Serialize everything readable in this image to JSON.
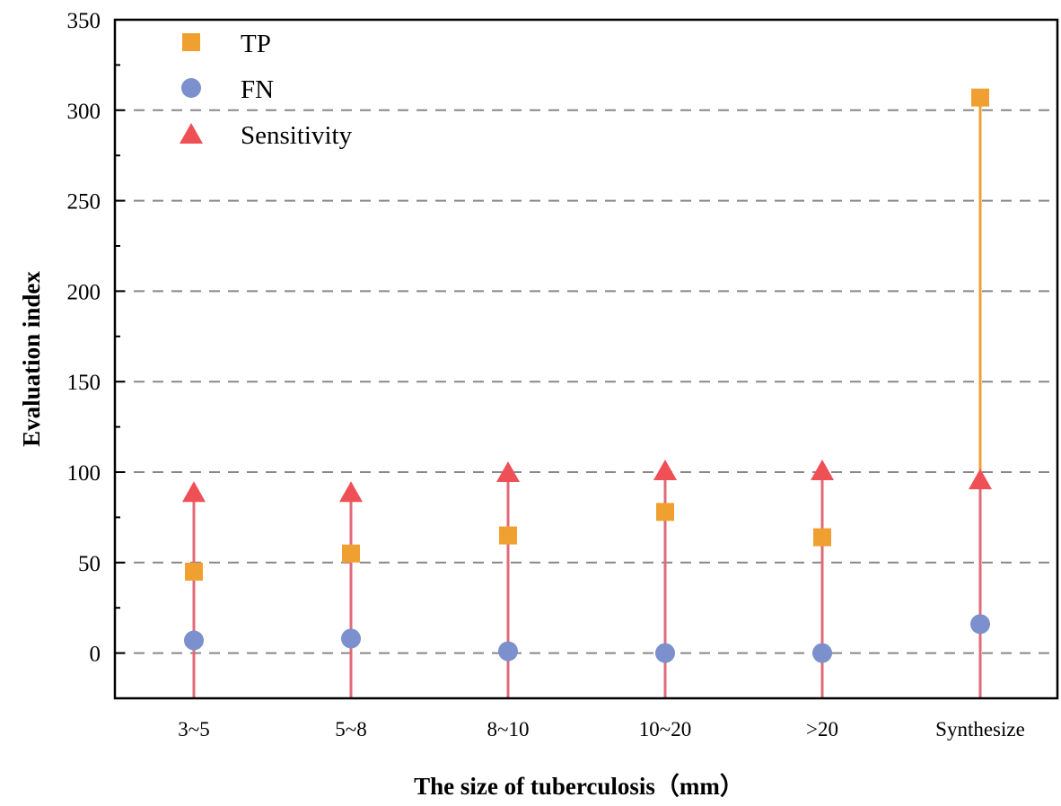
{
  "chart_data": {
    "type": "scatter",
    "title": "",
    "xlabel": "The size of tuberculosis（mm）",
    "ylabel": "Evaluation index",
    "categories": [
      "3~5",
      "5~8",
      "8~10",
      "10~20",
      ">20",
      "Synthesize"
    ],
    "ylim": [
      -25,
      350
    ],
    "yticks": [
      0,
      50,
      100,
      150,
      200,
      250,
      300,
      350
    ],
    "grid": "horizontal dashed",
    "legend_position": "top-left",
    "series": [
      {
        "name": "TP",
        "marker": "square",
        "color": "#F0A030",
        "values": [
          45,
          55,
          65,
          78,
          64,
          307
        ]
      },
      {
        "name": "FN",
        "marker": "circle",
        "color": "#7B90CC",
        "values": [
          7,
          8,
          1,
          0,
          0,
          16
        ]
      },
      {
        "name": "Sensitivity",
        "marker": "triangle",
        "color": "#EE5055",
        "values": [
          88,
          88,
          99,
          100,
          100,
          95
        ]
      }
    ]
  }
}
